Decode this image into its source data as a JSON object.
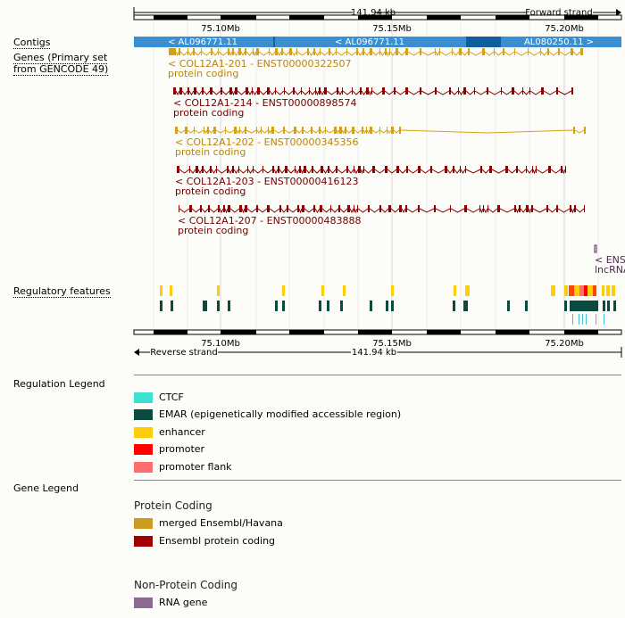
{
  "scale": {
    "top_span": "141.94 kb",
    "top_strand": "Forward strand",
    "bottom_span": "141.94 kb",
    "bottom_strand": "Reverse strand"
  },
  "ruler": {
    "ticks": [
      "75.10Mb",
      "75.15Mb",
      "75.20Mb"
    ]
  },
  "tracks": {
    "contigs_label": "Contigs",
    "genes_label_1": "Genes (Primary set",
    "genes_label_2": "from GENCODE 49)",
    "regulatory_label": "Regulatory features"
  },
  "contigs": [
    {
      "label": "< AL096771.11",
      "color": "#3b8fd0"
    },
    {
      "label": "< AL096771.11",
      "color": "#3b8fd0"
    },
    {
      "label": "AL080250.11 >",
      "color": "#3b8fd0"
    }
  ],
  "transcripts": [
    {
      "name": "< COL12A1-201 - ENST00000322507",
      "biotype": "protein coding",
      "color": "#c89b1e"
    },
    {
      "name": "< COL12A1-214 - ENST00000898574",
      "biotype": "protein coding",
      "color": "#8b0000"
    },
    {
      "name": "< COL12A1-202 - ENST00000345356",
      "biotype": "protein coding",
      "color": "#c89b1e"
    },
    {
      "name": "< COL12A1-203 - ENST00000416123",
      "biotype": "protein coding",
      "color": "#8b0000"
    },
    {
      "name": "< COL12A1-207 - ENST00000483888",
      "biotype": "protein coding",
      "color": "#8b0000"
    }
  ],
  "cut_transcript": {
    "name": "< ENST",
    "biotype": "lncRNA"
  },
  "regulation_legend": {
    "title": "Regulation Legend",
    "items": [
      {
        "label": "CTCF",
        "color": "#40e0d0"
      },
      {
        "label": "EMAR (epigenetically modified accessible region)",
        "color": "#0b4a3f"
      },
      {
        "label": "enhancer",
        "color": "#fdcc0d"
      },
      {
        "label": "promoter",
        "color": "#ff0000"
      },
      {
        "label": "promoter flank",
        "color": "#ff6e6e"
      }
    ]
  },
  "gene_legend": {
    "title": "Gene Legend",
    "groups": [
      {
        "heading": "Protein Coding",
        "items": [
          {
            "label": "merged Ensembl/Havana",
            "color": "#cd9b1d"
          },
          {
            "label": "Ensembl protein coding",
            "color": "#a00000"
          }
        ]
      },
      {
        "heading": "Non-Protein Coding",
        "items": [
          {
            "label": "RNA gene",
            "color": "#8b6a8f"
          }
        ]
      }
    ]
  }
}
